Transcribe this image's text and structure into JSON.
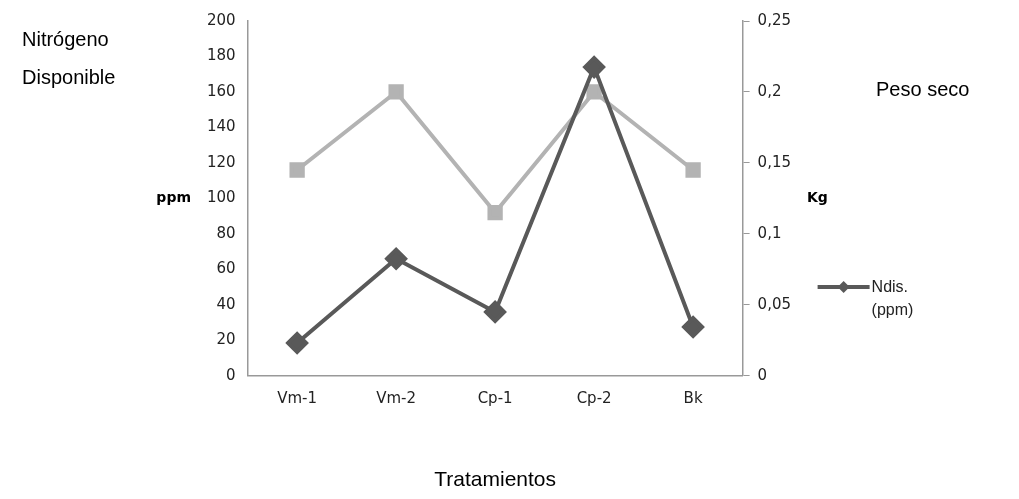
{
  "chart_data": {
    "type": "line",
    "xlabel": "Tratamientos",
    "ylabel": "ppm",
    "y2label": "Kg",
    "annotations": [
      "Nitrógeno Disponible",
      "Peso seco"
    ],
    "categories": [
      "Vm-1",
      "Vm-2",
      "Cp-1",
      "Cp-2",
      "Bk"
    ],
    "series": [
      {
        "name": "Ndis. (ppm)",
        "color": "#595959",
        "marker": "diamond",
        "values": [
          18.5,
          66,
          36,
          174,
          27.5
        ]
      },
      {
        "color": "#b3b3b3",
        "marker": "square",
        "axis": "y2",
        "values": [
          0.145,
          0.2,
          0.115,
          0.2,
          0.145
        ]
      }
    ],
    "ylim": [
      0,
      200
    ],
    "yticks": [
      0,
      20,
      40,
      60,
      80,
      100,
      120,
      140,
      160,
      180,
      200
    ],
    "y2lim": [
      0,
      0.25
    ],
    "y2ticks": [
      {
        "value": 0,
        "label": "0"
      },
      {
        "value": 0.05,
        "label": "0,05"
      },
      {
        "value": 0.1,
        "label": "0,1"
      },
      {
        "value": 0.15,
        "label": "0,15"
      },
      {
        "value": 0.2,
        "label": "0,2"
      },
      {
        "value": 0.25,
        "label": "0,25"
      }
    ],
    "grid": false,
    "legend": "right"
  }
}
